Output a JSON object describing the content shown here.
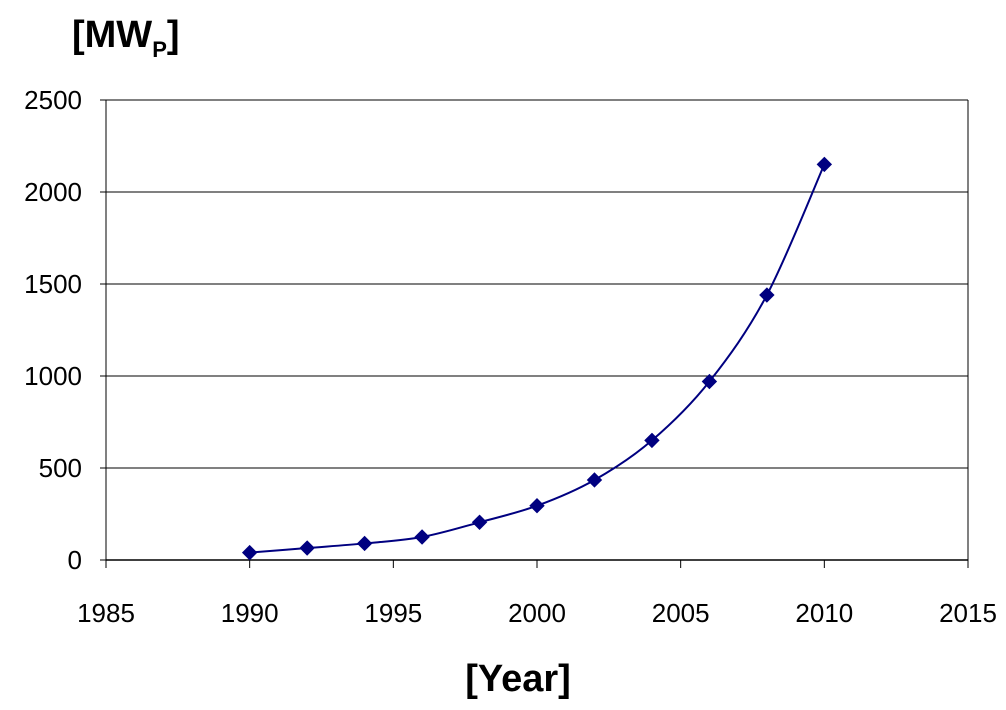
{
  "chart_data": {
    "type": "scatter",
    "title": "",
    "ylabel": {
      "main": "[MW",
      "subscript": "P",
      "close": "]"
    },
    "xlabel": "[Year]",
    "xlim": [
      1985,
      2015
    ],
    "ylim": [
      0,
      2500
    ],
    "xticks": [
      1985,
      1990,
      1995,
      2000,
      2005,
      2010,
      2015
    ],
    "yticks": [
      0,
      500,
      1000,
      1500,
      2000,
      2500
    ],
    "grid": {
      "horizontal": true,
      "vertical": false
    },
    "legend": "none",
    "series": [
      {
        "color": "#000080",
        "marker": "diamond",
        "line": "smooth",
        "x": [
          1990,
          1992,
          1994,
          1996,
          1998,
          2000,
          2002,
          2004,
          2006,
          2008,
          2010
        ],
        "y": [
          40,
          65,
          90,
          125,
          205,
          295,
          435,
          650,
          970,
          1440,
          2150
        ]
      }
    ]
  }
}
